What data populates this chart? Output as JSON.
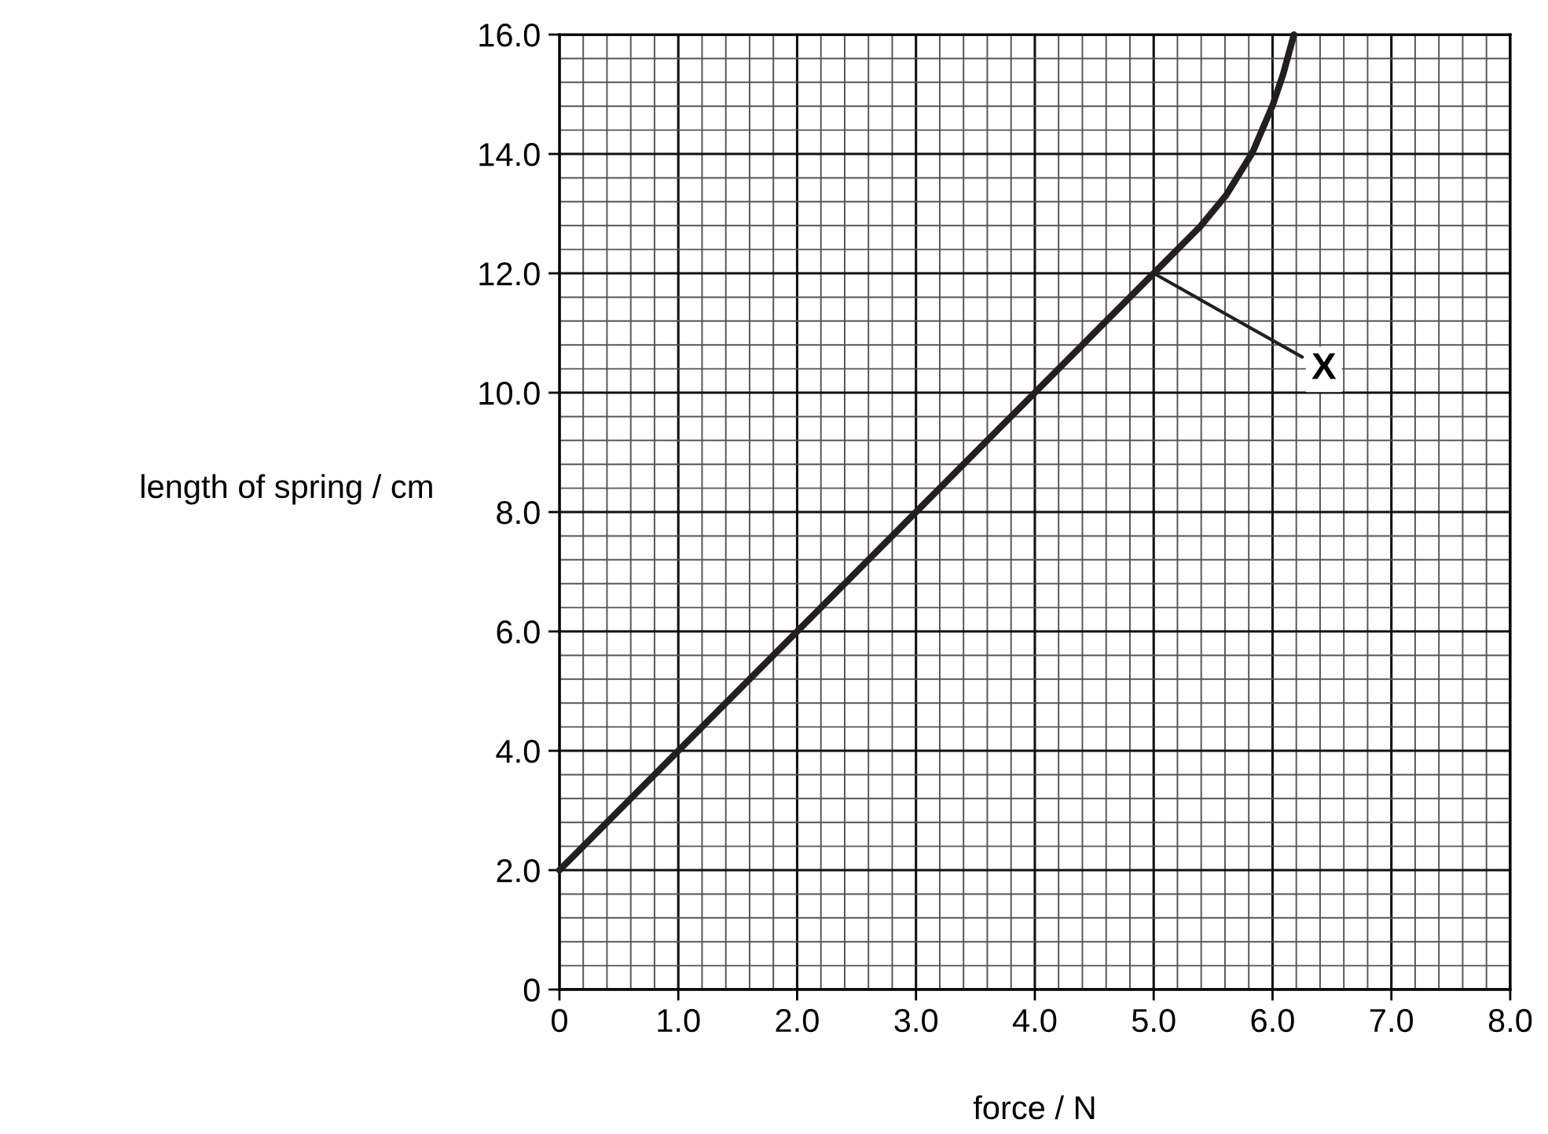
{
  "chart_data": {
    "type": "line",
    "xlabel": "force / N",
    "ylabel": "length of spring / cm",
    "series": [
      {
        "color": "#231f20",
        "x": [
          0,
          1.0,
          2.0,
          3.0,
          4.0,
          5.0,
          5.39,
          5.61,
          5.83,
          6.0,
          6.09,
          6.18
        ],
        "values": [
          2.0,
          4.0,
          6.0,
          8.0,
          10.0,
          12.0,
          12.78,
          13.31,
          14.02,
          14.81,
          15.34,
          16.0
        ]
      }
    ],
    "annotations": [
      {
        "text": "X",
        "x": 5.0,
        "y": 12.0
      }
    ],
    "xlim": [
      0,
      8.0
    ],
    "ylim": [
      0,
      16.0
    ],
    "xticks": [
      {
        "value": 0,
        "label": "0"
      },
      {
        "value": 1,
        "label": "1.0"
      },
      {
        "value": 2,
        "label": "2.0"
      },
      {
        "value": 3,
        "label": "3.0"
      },
      {
        "value": 4,
        "label": "4.0"
      },
      {
        "value": 5,
        "label": "5.0"
      },
      {
        "value": 6,
        "label": "6.0"
      },
      {
        "value": 7,
        "label": "7.0"
      },
      {
        "value": 8,
        "label": "8.0"
      }
    ],
    "yticks": [
      {
        "value": 0,
        "label": "0"
      },
      {
        "value": 2,
        "label": "2.0"
      },
      {
        "value": 4,
        "label": "4.0"
      },
      {
        "value": 6,
        "label": "6.0"
      },
      {
        "value": 8,
        "label": "8.0"
      },
      {
        "value": 10,
        "label": "10.0"
      },
      {
        "value": 12,
        "label": "12.0"
      },
      {
        "value": 14,
        "label": "14.0"
      },
      {
        "value": 16,
        "label": "16.0"
      }
    ],
    "grid": true,
    "marker": "none",
    "line_style": "solid"
  }
}
